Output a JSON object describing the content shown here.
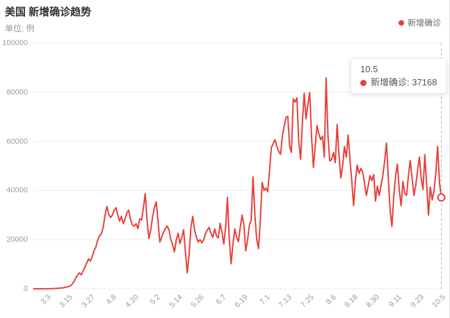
{
  "header": {
    "title": "美国 新增确诊趋势",
    "subtitle": "单位: 例"
  },
  "legend": {
    "label": "新增确诊"
  },
  "tooltip": {
    "date": "10.5",
    "label": "新增确诊: 37168"
  },
  "colors": {
    "line": "#e5413a",
    "grid": "#eeeeee",
    "axis_pointer": "#bdbdbd",
    "tick_text": "#9c9c9c"
  },
  "chart_data": {
    "type": "line",
    "title": "美国 新增确诊趋势",
    "unit": "例",
    "series_name": "新增确诊",
    "smooth": true,
    "grid": true,
    "legend_position": "top-right",
    "ylim": [
      0,
      100000
    ],
    "y_ticks": [
      0,
      20000,
      40000,
      60000,
      80000,
      100000
    ],
    "y_tick_labels": [
      "0",
      "20000",
      "40000",
      "60000",
      "80000",
      "100000"
    ],
    "x_tick_labels": [
      "3.3",
      "3.15",
      "3.27",
      "4.8",
      "4.20",
      "5.2",
      "5.14",
      "5.26",
      "6.7",
      "6.19",
      "7.1",
      "7.13",
      "7.25",
      "8.6",
      "8.18",
      "8.30",
      "9.11",
      "9.23",
      "10.5"
    ],
    "x_label_rotation": 45,
    "highlight": {
      "date": "10.5",
      "value": 37168
    },
    "dates": [
      "2.25",
      "2.26",
      "2.27",
      "2.28",
      "2.29",
      "3.1",
      "3.2",
      "3.3",
      "3.4",
      "3.5",
      "3.6",
      "3.7",
      "3.8",
      "3.9",
      "3.10",
      "3.11",
      "3.12",
      "3.13",
      "3.14",
      "3.15",
      "3.16",
      "3.17",
      "3.18",
      "3.19",
      "3.20",
      "3.21",
      "3.22",
      "3.23",
      "3.24",
      "3.25",
      "3.26",
      "3.27",
      "3.28",
      "3.29",
      "3.30",
      "3.31",
      "4.1",
      "4.2",
      "4.3",
      "4.4",
      "4.5",
      "4.6",
      "4.7",
      "4.8",
      "4.9",
      "4.10",
      "4.11",
      "4.12",
      "4.13",
      "4.14",
      "4.15",
      "4.16",
      "4.17",
      "4.18",
      "4.19",
      "4.20",
      "4.21",
      "4.22",
      "4.23",
      "4.24",
      "4.25",
      "4.26",
      "4.27",
      "4.28",
      "4.29",
      "4.30",
      "5.1",
      "5.2",
      "5.3",
      "5.4",
      "5.5",
      "5.6",
      "5.7",
      "5.8",
      "5.9",
      "5.10",
      "5.11",
      "5.12",
      "5.13",
      "5.14",
      "5.15",
      "5.16",
      "5.17",
      "5.18",
      "5.19",
      "5.20",
      "5.21",
      "5.22",
      "5.23",
      "5.24",
      "5.25",
      "5.26",
      "5.27",
      "5.28",
      "5.29",
      "5.30",
      "5.31",
      "6.1",
      "6.2",
      "6.3",
      "6.4",
      "6.5",
      "6.6",
      "6.7",
      "6.8",
      "6.9",
      "6.10",
      "6.11",
      "6.12",
      "6.13",
      "6.14",
      "6.15",
      "6.16",
      "6.17",
      "6.18",
      "6.19",
      "6.20",
      "6.21",
      "6.22",
      "6.23",
      "6.24",
      "6.25",
      "6.26",
      "6.27",
      "6.28",
      "6.29",
      "6.30",
      "7.1",
      "7.2",
      "7.3",
      "7.4",
      "7.5",
      "7.6",
      "7.7",
      "7.8",
      "7.9",
      "7.10",
      "7.11",
      "7.12",
      "7.13",
      "7.14",
      "7.15",
      "7.16",
      "7.17",
      "7.18",
      "7.19",
      "7.20",
      "7.21",
      "7.22",
      "7.23",
      "7.24",
      "7.25",
      "7.26",
      "7.27",
      "7.28",
      "7.29",
      "7.30",
      "7.31",
      "8.1",
      "8.2",
      "8.3",
      "8.4",
      "8.5",
      "8.6",
      "8.7",
      "8.8",
      "8.9",
      "8.10",
      "8.11",
      "8.12",
      "8.13",
      "8.14",
      "8.15",
      "8.16",
      "8.17",
      "8.18",
      "8.19",
      "8.20",
      "8.21",
      "8.22",
      "8.23",
      "8.24",
      "8.25",
      "8.26",
      "8.27",
      "8.28",
      "8.29",
      "8.30",
      "8.31",
      "9.1",
      "9.2",
      "9.3",
      "9.4",
      "9.5",
      "9.6",
      "9.7",
      "9.8",
      "9.9",
      "9.10",
      "9.11",
      "9.12",
      "9.13",
      "9.14",
      "9.15",
      "9.16",
      "9.17",
      "9.18",
      "9.19",
      "9.20",
      "9.21",
      "9.22",
      "9.23",
      "9.24",
      "9.25",
      "9.26",
      "9.27",
      "9.28",
      "9.29",
      "9.30",
      "10.1",
      "10.2",
      "10.3",
      "10.4",
      "10.5"
    ],
    "values": [
      0,
      0,
      0,
      0,
      5,
      10,
      20,
      30,
      40,
      70,
      110,
      120,
      150,
      230,
      290,
      350,
      420,
      600,
      730,
      900,
      1200,
      1900,
      2900,
      4400,
      5600,
      6500,
      5700,
      7300,
      8800,
      10500,
      12200,
      11300,
      13000,
      15500,
      17000,
      19800,
      21500,
      22500,
      25000,
      30000,
      33500,
      30500,
      29000,
      30000,
      32000,
      33000,
      30000,
      27500,
      29500,
      26500,
      28500,
      31000,
      32000,
      28000,
      26000,
      25500,
      26500,
      24500,
      28500,
      28000,
      33000,
      38800,
      28000,
      20500,
      24000,
      29000,
      33000,
      35400,
      27500,
      19000,
      21000,
      23000,
      24500,
      25500,
      24000,
      20000,
      18000,
      15000,
      20000,
      22600,
      18400,
      21000,
      24000,
      15000,
      6500,
      14000,
      25000,
      29500,
      24000,
      21000,
      19000,
      20000,
      18700,
      20000,
      22500,
      24000,
      25000,
      22500,
      21000,
      24400,
      21500,
      20700,
      26700,
      23000,
      18200,
      25000,
      37200,
      20000,
      10200,
      18000,
      24400,
      21000,
      19200,
      25000,
      30000,
      26000,
      15400,
      20000,
      26000,
      28000,
      45500,
      30000,
      20000,
      16400,
      28000,
      43300,
      40000,
      41000,
      39500,
      48000,
      57400,
      59000,
      60700,
      58000,
      56000,
      54700,
      62000,
      66000,
      69700,
      70200,
      58000,
      55500,
      77300,
      76000,
      77700,
      60000,
      52700,
      68000,
      79600,
      69200,
      75000,
      79900,
      62000,
      49400,
      58000,
      66400,
      63000,
      60700,
      62100,
      53600,
      85800,
      62000,
      52000,
      52700,
      55500,
      51300,
      66900,
      55000,
      45100,
      50000,
      57900,
      53600,
      62600,
      53000,
      44200,
      33800,
      44000,
      50300,
      47000,
      49000,
      47500,
      43000,
      38000,
      42000,
      46100,
      44000,
      46500,
      35700,
      41800,
      38000,
      42000,
      46000,
      52000,
      59300,
      45000,
      32000,
      25300,
      38000,
      46000,
      50800,
      40000,
      33800,
      43700,
      39000,
      38000,
      46000,
      52200,
      45000,
      38000,
      42000,
      48000,
      53600,
      45000,
      40400,
      54600,
      42000,
      30000,
      41400,
      36200,
      40000,
      47000,
      57900,
      43300,
      37168
    ]
  }
}
